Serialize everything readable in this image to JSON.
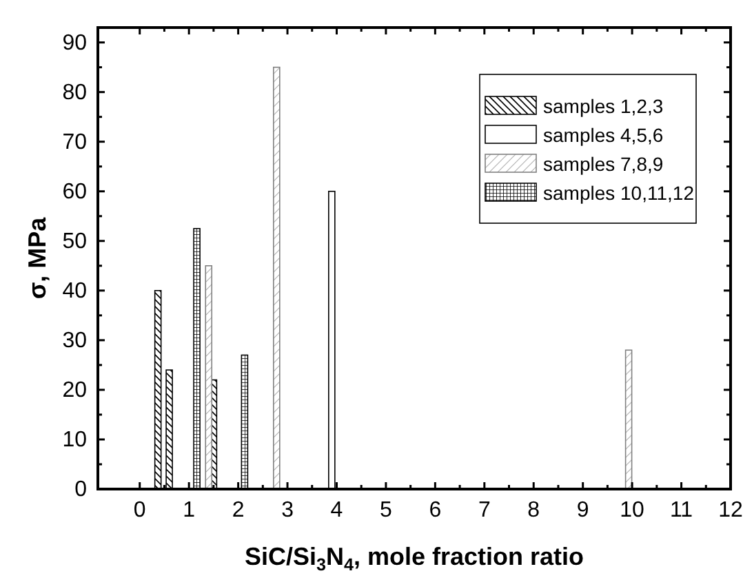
{
  "chart_data": {
    "type": "bar",
    "xlabel": "SiC/Si$_{3}$N$_{4}$, mole fraction ratio",
    "ylabel": "σ, MPa",
    "xlim": [
      -0.85,
      12
    ],
    "xticks": [
      0,
      1,
      2,
      3,
      4,
      5,
      6,
      7,
      8,
      9,
      10,
      11,
      12
    ],
    "ylim": [
      0,
      93
    ],
    "yticks": [
      0,
      10,
      20,
      30,
      40,
      50,
      60,
      70,
      80,
      90
    ],
    "legend": "top right",
    "grid": false,
    "series": [
      {
        "name": "samples 1,2,3",
        "color": "#000000",
        "x": [
          0.37,
          0.6,
          1.5
        ],
        "values": [
          40,
          24,
          22
        ]
      },
      {
        "name": "samples 4,5,6",
        "color": "#000000",
        "x": [
          3.9
        ],
        "values": [
          60
        ]
      },
      {
        "name": "samples 7,8,9",
        "color": "#808080",
        "x": [
          1.4,
          2.78,
          9.93
        ],
        "values": [
          45,
          85,
          28
        ]
      },
      {
        "name": "samples 10,11,12",
        "color": "#000000",
        "x": [
          1.16,
          2.13
        ],
        "values": [
          52.5,
          27
        ]
      }
    ]
  }
}
